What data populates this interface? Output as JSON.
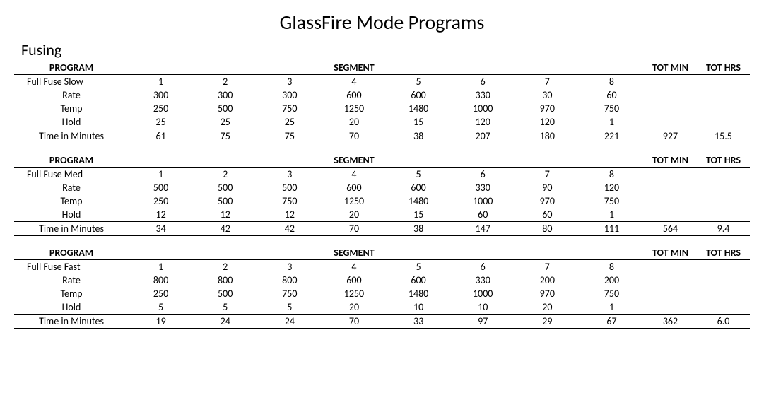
{
  "title": "GlassFire Mode Programs",
  "section": "Fusing",
  "headers": {
    "program": "PROGRAM",
    "segment": "SEGMENT",
    "tot_min": "TOT MIN",
    "tot_hrs": "TOT HRS"
  },
  "row_labels": {
    "rate": "Rate",
    "temp": "Temp",
    "hold": "Hold",
    "time": "Time in Minutes"
  },
  "segment_labels": [
    "1",
    "2",
    "3",
    "4",
    "5",
    "6",
    "7",
    "8"
  ],
  "programs": [
    {
      "name": "Full Fuse Slow",
      "rate": [
        "300",
        "300",
        "300",
        "600",
        "600",
        "330",
        "30",
        "60"
      ],
      "temp": [
        "250",
        "500",
        "750",
        "1250",
        "1480",
        "1000",
        "970",
        "750"
      ],
      "hold": [
        "25",
        "25",
        "25",
        "20",
        "15",
        "120",
        "120",
        "1"
      ],
      "time": [
        "61",
        "75",
        "75",
        "70",
        "38",
        "207",
        "180",
        "221"
      ],
      "tot_min": "927",
      "tot_hrs": "15.5"
    },
    {
      "name": "Full Fuse Med",
      "rate": [
        "500",
        "500",
        "500",
        "600",
        "600",
        "330",
        "90",
        "120"
      ],
      "temp": [
        "250",
        "500",
        "750",
        "1250",
        "1480",
        "1000",
        "970",
        "750"
      ],
      "hold": [
        "12",
        "12",
        "12",
        "20",
        "15",
        "60",
        "60",
        "1"
      ],
      "time": [
        "34",
        "42",
        "42",
        "70",
        "38",
        "147",
        "80",
        "111"
      ],
      "tot_min": "564",
      "tot_hrs": "9.4"
    },
    {
      "name": "Full Fuse Fast",
      "rate": [
        "800",
        "800",
        "800",
        "600",
        "600",
        "330",
        "200",
        "200"
      ],
      "temp": [
        "250",
        "500",
        "750",
        "1250",
        "1480",
        "1000",
        "970",
        "750"
      ],
      "hold": [
        "5",
        "5",
        "5",
        "20",
        "10",
        "10",
        "20",
        "1"
      ],
      "time": [
        "19",
        "24",
        "24",
        "70",
        "33",
        "97",
        "29",
        "67"
      ],
      "tot_min": "362",
      "tot_hrs": "6.0"
    }
  ]
}
